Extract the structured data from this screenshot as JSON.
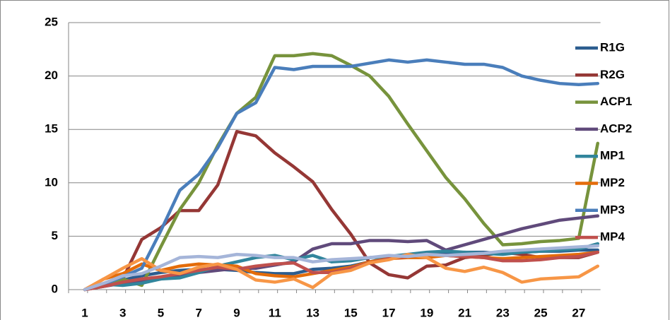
{
  "chart_data": {
    "type": "line",
    "categories": [
      "1",
      null,
      "3",
      null,
      "5",
      null,
      "7",
      null,
      "9",
      null,
      "11",
      null,
      "13",
      null,
      "15",
      null,
      "17",
      null,
      "19",
      null,
      "21",
      null,
      "23",
      null,
      "25",
      null,
      "27",
      null
    ],
    "ylim": [
      0,
      25
    ],
    "yticks": [
      0,
      5,
      10,
      15,
      20,
      25
    ],
    "grid": true,
    "series": [
      {
        "name": "R1G",
        "color": "#2c5d8f",
        "values": [
          0,
          0.4,
          0.9,
          1.3,
          1.6,
          1.8,
          1.9,
          1.9,
          1.8,
          1.6,
          1.5,
          1.5,
          1.9,
          2,
          2.2,
          2.6,
          3,
          3.2,
          3.4,
          3.4,
          3.5,
          3.5,
          3.4,
          3.5,
          3.6,
          3.6,
          3.7,
          3.7
        ]
      },
      {
        "name": "R2G",
        "color": "#953735",
        "values": [
          0,
          0.5,
          1,
          4.7,
          5.8,
          7.4,
          7.4,
          9.8,
          14.8,
          14.4,
          12.8,
          11.5,
          10.1,
          7.5,
          5.2,
          2.5,
          1.4,
          1.1,
          2.2,
          2.3,
          3,
          3.2,
          3.5,
          3.3,
          3,
          3,
          3,
          3.5
        ]
      },
      {
        "name": "ACP1",
        "color": "#77933c",
        "values": [
          0,
          0.5,
          1,
          0.4,
          4,
          7.5,
          10,
          13.5,
          16.5,
          18,
          21.9,
          21.9,
          22.1,
          21.9,
          21,
          20,
          18.1,
          15.5,
          13,
          10.5,
          8.5,
          6.2,
          4.2,
          4.3,
          4.5,
          4.6,
          4.8,
          13.7
        ]
      },
      {
        "name": "ACP2",
        "color": "#604a7b",
        "values": [
          0,
          0.3,
          0.6,
          0.8,
          1,
          1.3,
          1.6,
          1.8,
          2,
          2,
          2.3,
          2.6,
          3.8,
          4.3,
          4.3,
          4.6,
          4.6,
          4.5,
          4.6,
          3.7,
          4.2,
          4.7,
          5.2,
          5.7,
          6.1,
          6.5,
          6.7,
          6.9
        ]
      },
      {
        "name": "MP1",
        "color": "#31859c",
        "values": [
          0,
          0.5,
          0.4,
          0.6,
          1,
          1.1,
          1.6,
          2.2,
          2.6,
          3,
          3.2,
          2.8,
          3.2,
          2.6,
          2.7,
          3,
          3.1,
          3.3,
          3.5,
          3.6,
          3.5,
          3.4,
          3.3,
          3.5,
          3.6,
          3.7,
          3.8,
          4.3
        ]
      },
      {
        "name": "MP2",
        "color": "#e46c0a",
        "values": [
          0,
          1,
          1.5,
          2.4,
          1.8,
          2.2,
          2.4,
          2.3,
          2.2,
          1.5,
          1.3,
          1.2,
          1.5,
          1.8,
          2.1,
          2.6,
          2.9,
          3,
          3,
          3.2,
          3.1,
          3,
          2.9,
          3,
          3.1,
          3.2,
          3.3,
          3.5
        ]
      },
      {
        "name": "MP3",
        "color": "#4a7ebb",
        "values": [
          0,
          0.5,
          1.2,
          2,
          5.5,
          9.3,
          10.8,
          13.3,
          16.5,
          17.5,
          20.8,
          20.6,
          20.9,
          20.9,
          20.9,
          21.2,
          21.5,
          21.3,
          21.5,
          21.3,
          21.1,
          21.1,
          20.8,
          20,
          19.6,
          19.3,
          19.2,
          19.3
        ]
      },
      {
        "name": "MP4",
        "color": "#c0504d",
        "values": [
          0,
          0.3,
          0.7,
          1,
          1.2,
          1.5,
          1.8,
          2.1,
          1.9,
          2.2,
          2.4,
          2.5,
          1.6,
          1.6,
          2,
          2.5,
          2.9,
          3.1,
          3.3,
          3.2,
          3.1,
          3,
          2.7,
          2.7,
          2.8,
          3,
          3.1,
          3.5
        ]
      },
      {
        "name": null,
        "color": "#f79646",
        "values": [
          0,
          1,
          2,
          2.9,
          1.8,
          1.5,
          2.1,
          2.4,
          1.9,
          0.9,
          0.7,
          1,
          0.2,
          1.5,
          1.8,
          2.5,
          2.8,
          3.3,
          3,
          2,
          1.7,
          2.1,
          1.6,
          0.7,
          1,
          1.1,
          1.2,
          2.2
        ]
      },
      {
        "name": null,
        "color": "#a5b5d9",
        "values": [
          0,
          0.6,
          1.3,
          1.5,
          2.2,
          3,
          3.1,
          3,
          3.3,
          3.2,
          3,
          3,
          2.6,
          2.8,
          2.9,
          3,
          3.2,
          3.1,
          3.3,
          3.2,
          3.3,
          3.4,
          3.6,
          3.7,
          3.8,
          3.9,
          4,
          4.1
        ]
      }
    ]
  }
}
